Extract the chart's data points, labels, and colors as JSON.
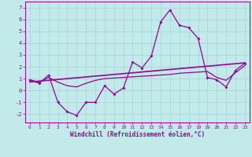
{
  "title": "",
  "xlabel": "Windchill (Refroidissement éolien,°C)",
  "xlim": [
    -0.5,
    23.5
  ],
  "ylim": [
    -2.7,
    7.5
  ],
  "yticks": [
    -2,
    -1,
    0,
    1,
    2,
    3,
    4,
    5,
    6,
    7
  ],
  "xticks": [
    0,
    1,
    2,
    3,
    4,
    5,
    6,
    7,
    8,
    9,
    10,
    11,
    12,
    13,
    14,
    15,
    16,
    17,
    18,
    19,
    20,
    21,
    22,
    23
  ],
  "bg_color": "#c2eaea",
  "line_color": "#990099",
  "grid_color": "#a8d8d8",
  "hours": [
    0,
    1,
    2,
    3,
    4,
    5,
    6,
    7,
    8,
    9,
    10,
    11,
    12,
    13,
    14,
    15,
    16,
    17,
    18,
    19,
    20,
    21,
    22,
    23
  ],
  "temp": [
    0.9,
    0.6,
    1.3,
    -1.0,
    -1.8,
    -2.1,
    -1.0,
    -1.0,
    0.4,
    -0.3,
    0.2,
    2.4,
    1.9,
    2.9,
    5.8,
    6.8,
    5.5,
    5.3,
    4.4,
    1.1,
    0.9,
    0.3,
    1.7,
    2.3
  ],
  "linear": [
    0.72,
    0.79,
    0.86,
    0.93,
    1.0,
    1.07,
    1.14,
    1.21,
    1.28,
    1.35,
    1.42,
    1.49,
    1.56,
    1.63,
    1.7,
    1.77,
    1.84,
    1.91,
    1.98,
    2.05,
    2.12,
    2.19,
    2.26,
    2.33
  ],
  "smooth": [
    0.9,
    0.7,
    1.1,
    0.7,
    0.4,
    0.3,
    0.6,
    0.85,
    1.0,
    1.05,
    1.1,
    1.15,
    1.2,
    1.25,
    1.3,
    1.35,
    1.45,
    1.5,
    1.55,
    1.6,
    1.1,
    0.85,
    1.5,
    2.1
  ]
}
